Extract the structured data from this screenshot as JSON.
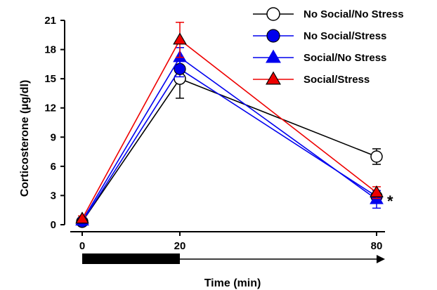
{
  "chart_data": {
    "type": "line",
    "title": "",
    "xlabel": "Time (min)",
    "ylabel": "Corticosterone (µg/dl)",
    "x": [
      0,
      20,
      80
    ],
    "x_tick_labels": [
      "0",
      "20",
      "80"
    ],
    "ylim": [
      0,
      21
    ],
    "y_ticks": [
      0,
      3,
      6,
      9,
      12,
      15,
      18,
      21
    ],
    "y_tick_labels": [
      "0",
      "3",
      "6",
      "9",
      "12",
      "15",
      "18",
      "21"
    ],
    "grid": false,
    "legend_position": "top-right",
    "series": [
      {
        "name": "No Social/No Stress",
        "marker": "circle-open",
        "color": "#000000",
        "values": [
          0.3,
          15.0,
          7.0
        ],
        "errors": [
          0.3,
          2.0,
          0.8
        ]
      },
      {
        "name": "No Social/Stress",
        "marker": "circle-filled",
        "color": "#0000ee",
        "values": [
          0.3,
          16.0,
          2.9
        ],
        "errors": [
          0.3,
          0.8,
          0.6
        ]
      },
      {
        "name": "Social/No Stress",
        "marker": "triangle-filled",
        "color": "#0000ee",
        "values": [
          0.4,
          17.2,
          2.6
        ],
        "errors": [
          0.3,
          1.0,
          0.9
        ]
      },
      {
        "name": "Social/Stress",
        "marker": "triangle-filled",
        "color": "#ee0000",
        "values": [
          0.6,
          19.0,
          3.3
        ],
        "errors": [
          0.3,
          1.8,
          0.6
        ]
      }
    ],
    "annotations": [
      {
        "text": "*",
        "near": "80 min points"
      }
    ],
    "stress_period": {
      "start": 0,
      "end": 20
    }
  }
}
